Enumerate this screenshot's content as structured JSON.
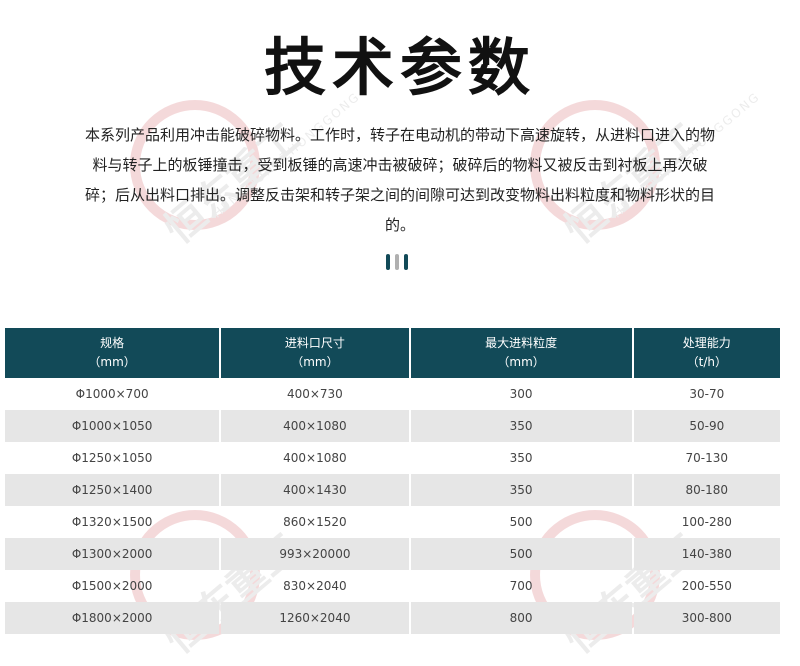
{
  "title": "技术参数",
  "description": "本系列产品利用冲击能破碎物料。工作时，转子在电动机的带动下高速旋转，从进料口进入的物料与转子上的板锤撞击，受到板锤的高速冲击被破碎；破碎后的物料又被反击到衬板上再次破碎；后从出料口排出。调整反击架和转子架之间的间隙可达到改变物料出料粒度和物料形状的目的。",
  "colors": {
    "header_bg": "#124a58",
    "row_alt": "#e6e6e6",
    "divider_dark": "#124a58",
    "divider_light": "#b0b0b0"
  },
  "watermark": {
    "brand": "恒东重工",
    "latin": "HENGDONGZHONGGONG"
  },
  "table": {
    "headers": [
      {
        "label": "规格",
        "unit": "（mm）"
      },
      {
        "label": "进料口尺寸",
        "unit": "（mm）"
      },
      {
        "label": "最大进料粒度",
        "unit": "（mm）"
      },
      {
        "label": "处理能力",
        "unit": "（t/h）"
      }
    ],
    "rows": [
      [
        "Φ1000×700",
        "400×730",
        "300",
        "30-70"
      ],
      [
        "Φ1000×1050",
        "400×1080",
        "350",
        "50-90"
      ],
      [
        "Φ1250×1050",
        "400×1080",
        "350",
        "70-130"
      ],
      [
        "Φ1250×1400",
        "400×1430",
        "350",
        "80-180"
      ],
      [
        "Φ1320×1500",
        "860×1520",
        "500",
        "100-280"
      ],
      [
        "Φ1300×2000",
        "993×20000",
        "500",
        "140-380"
      ],
      [
        "Φ1500×2000",
        "830×2040",
        "700",
        "200-550"
      ],
      [
        "Φ1800×2000",
        "1260×2040",
        "800",
        "300-800"
      ]
    ]
  }
}
